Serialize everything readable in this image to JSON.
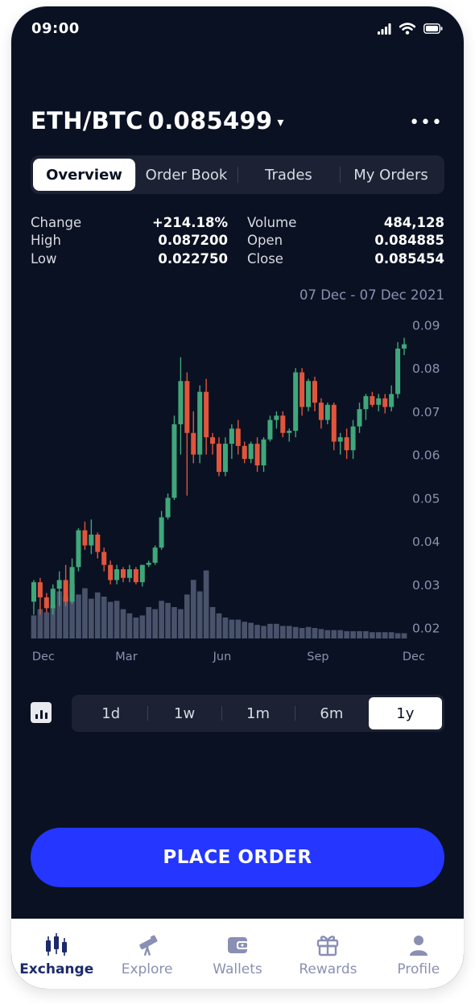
{
  "status": {
    "time": "09:00",
    "icons": [
      "signal-icon",
      "wifi-icon",
      "battery-icon"
    ]
  },
  "header": {
    "pair": "ETH/BTC",
    "price": "0.085499",
    "caret": "▾",
    "more": "•••"
  },
  "tabs": [
    {
      "label": "Overview",
      "active": true
    },
    {
      "label": "Order Book",
      "active": false
    },
    {
      "label": "Trades",
      "active": false
    },
    {
      "label": "My Orders",
      "active": false
    }
  ],
  "stats": {
    "change_label": "Change",
    "change_value": "+214.18%",
    "high_label": "High",
    "high_value": "0.087200",
    "low_label": "Low",
    "low_value": "0.022750",
    "volume_label": "Volume",
    "volume_value": "484,128",
    "open_label": "Open",
    "open_value": "0.084885",
    "close_label": "Close",
    "close_value": "0.085454"
  },
  "date_range": "07 Dec - 07 Dec 2021",
  "timeframes": [
    {
      "label": "1d",
      "active": false
    },
    {
      "label": "1w",
      "active": false
    },
    {
      "label": "1m",
      "active": false
    },
    {
      "label": "6m",
      "active": false
    },
    {
      "label": "1y",
      "active": true
    }
  ],
  "place_order_label": "PLACE ORDER",
  "tabbar": [
    {
      "label": "Exchange",
      "icon": "exchange-icon",
      "active": true
    },
    {
      "label": "Explore",
      "icon": "telescope-icon",
      "active": false
    },
    {
      "label": "Wallets",
      "icon": "wallet-icon",
      "active": false
    },
    {
      "label": "Rewards",
      "icon": "gift-icon",
      "active": false
    },
    {
      "label": "Profile",
      "icon": "profile-icon",
      "active": false
    }
  ],
  "colors": {
    "background": "#0a1122",
    "up": "#3fa77a",
    "down": "#e1553c",
    "volume": "#49526b",
    "accent": "#2436ff"
  },
  "chart_data": {
    "type": "candlestick",
    "title": "",
    "ylim": [
      0.0175,
      0.091
    ],
    "y_ticks": [
      "0.09",
      "0.08",
      "0.07",
      "0.06",
      "0.05",
      "0.04",
      "0.03",
      "0.02"
    ],
    "y_tick_values": [
      0.09,
      0.08,
      0.07,
      0.06,
      0.05,
      0.04,
      0.03,
      0.02
    ],
    "x_labels": [
      "Dec",
      "Mar",
      "Jun",
      "Sep",
      "Dec"
    ],
    "x_label_index": [
      1.5,
      14.5,
      29.5,
      44.5,
      59.5
    ],
    "volume_max": 1,
    "candles": [
      {
        "o": 0.026,
        "h": 0.031,
        "l": 0.023,
        "c": 0.0305
      },
      {
        "o": 0.0305,
        "h": 0.0315,
        "l": 0.023,
        "c": 0.027
      },
      {
        "o": 0.027,
        "h": 0.028,
        "l": 0.0235,
        "c": 0.0245
      },
      {
        "o": 0.0245,
        "h": 0.03,
        "l": 0.023,
        "c": 0.029
      },
      {
        "o": 0.029,
        "h": 0.033,
        "l": 0.025,
        "c": 0.031
      },
      {
        "o": 0.031,
        "h": 0.0345,
        "l": 0.025,
        "c": 0.026
      },
      {
        "o": 0.026,
        "h": 0.036,
        "l": 0.0255,
        "c": 0.034
      },
      {
        "o": 0.034,
        "h": 0.043,
        "l": 0.033,
        "c": 0.0425
      },
      {
        "o": 0.0425,
        "h": 0.0445,
        "l": 0.038,
        "c": 0.039
      },
      {
        "o": 0.039,
        "h": 0.045,
        "l": 0.037,
        "c": 0.0415
      },
      {
        "o": 0.0415,
        "h": 0.042,
        "l": 0.036,
        "c": 0.0375
      },
      {
        "o": 0.0375,
        "h": 0.0385,
        "l": 0.033,
        "c": 0.0345
      },
      {
        "o": 0.0345,
        "h": 0.0355,
        "l": 0.03,
        "c": 0.031
      },
      {
        "o": 0.031,
        "h": 0.0345,
        "l": 0.03,
        "c": 0.0335
      },
      {
        "o": 0.0335,
        "h": 0.034,
        "l": 0.0305,
        "c": 0.0315
      },
      {
        "o": 0.0315,
        "h": 0.0345,
        "l": 0.0305,
        "c": 0.0335
      },
      {
        "o": 0.0335,
        "h": 0.034,
        "l": 0.03,
        "c": 0.0305
      },
      {
        "o": 0.0305,
        "h": 0.0345,
        "l": 0.0295,
        "c": 0.0345
      },
      {
        "o": 0.0345,
        "h": 0.0355,
        "l": 0.034,
        "c": 0.035
      },
      {
        "o": 0.035,
        "h": 0.039,
        "l": 0.0345,
        "c": 0.0385
      },
      {
        "o": 0.0385,
        "h": 0.047,
        "l": 0.038,
        "c": 0.0455
      },
      {
        "o": 0.0455,
        "h": 0.051,
        "l": 0.045,
        "c": 0.05
      },
      {
        "o": 0.05,
        "h": 0.069,
        "l": 0.0495,
        "c": 0.067
      },
      {
        "o": 0.067,
        "h": 0.0825,
        "l": 0.06,
        "c": 0.077
      },
      {
        "o": 0.077,
        "h": 0.079,
        "l": 0.0505,
        "c": 0.065
      },
      {
        "o": 0.065,
        "h": 0.07,
        "l": 0.058,
        "c": 0.06
      },
      {
        "o": 0.06,
        "h": 0.076,
        "l": 0.058,
        "c": 0.0745
      },
      {
        "o": 0.0745,
        "h": 0.0775,
        "l": 0.06,
        "c": 0.064
      },
      {
        "o": 0.064,
        "h": 0.065,
        "l": 0.06,
        "c": 0.0625
      },
      {
        "o": 0.0625,
        "h": 0.064,
        "l": 0.055,
        "c": 0.056
      },
      {
        "o": 0.056,
        "h": 0.064,
        "l": 0.055,
        "c": 0.0625
      },
      {
        "o": 0.0625,
        "h": 0.067,
        "l": 0.059,
        "c": 0.066
      },
      {
        "o": 0.066,
        "h": 0.068,
        "l": 0.06,
        "c": 0.062
      },
      {
        "o": 0.062,
        "h": 0.063,
        "l": 0.058,
        "c": 0.059
      },
      {
        "o": 0.059,
        "h": 0.063,
        "l": 0.058,
        "c": 0.0625
      },
      {
        "o": 0.0625,
        "h": 0.064,
        "l": 0.056,
        "c": 0.0575
      },
      {
        "o": 0.0575,
        "h": 0.064,
        "l": 0.056,
        "c": 0.0635
      },
      {
        "o": 0.0635,
        "h": 0.069,
        "l": 0.063,
        "c": 0.068
      },
      {
        "o": 0.068,
        "h": 0.07,
        "l": 0.066,
        "c": 0.069
      },
      {
        "o": 0.069,
        "h": 0.07,
        "l": 0.064,
        "c": 0.065
      },
      {
        "o": 0.065,
        "h": 0.066,
        "l": 0.063,
        "c": 0.0655
      },
      {
        "o": 0.0655,
        "h": 0.08,
        "l": 0.064,
        "c": 0.079
      },
      {
        "o": 0.079,
        "h": 0.08,
        "l": 0.069,
        "c": 0.071
      },
      {
        "o": 0.071,
        "h": 0.0775,
        "l": 0.07,
        "c": 0.077
      },
      {
        "o": 0.077,
        "h": 0.078,
        "l": 0.07,
        "c": 0.072
      },
      {
        "o": 0.072,
        "h": 0.073,
        "l": 0.066,
        "c": 0.068
      },
      {
        "o": 0.068,
        "h": 0.072,
        "l": 0.067,
        "c": 0.0715
      },
      {
        "o": 0.0715,
        "h": 0.072,
        "l": 0.061,
        "c": 0.063
      },
      {
        "o": 0.063,
        "h": 0.065,
        "l": 0.06,
        "c": 0.064
      },
      {
        "o": 0.064,
        "h": 0.066,
        "l": 0.059,
        "c": 0.061
      },
      {
        "o": 0.061,
        "h": 0.068,
        "l": 0.059,
        "c": 0.0665
      },
      {
        "o": 0.0665,
        "h": 0.072,
        "l": 0.065,
        "c": 0.0705
      },
      {
        "o": 0.0705,
        "h": 0.074,
        "l": 0.068,
        "c": 0.0735
      },
      {
        "o": 0.0735,
        "h": 0.0745,
        "l": 0.071,
        "c": 0.0715
      },
      {
        "o": 0.0715,
        "h": 0.074,
        "l": 0.07,
        "c": 0.073
      },
      {
        "o": 0.073,
        "h": 0.074,
        "l": 0.0695,
        "c": 0.071
      },
      {
        "o": 0.071,
        "h": 0.076,
        "l": 0.07,
        "c": 0.074
      },
      {
        "o": 0.074,
        "h": 0.086,
        "l": 0.073,
        "c": 0.0845
      },
      {
        "o": 0.0845,
        "h": 0.087,
        "l": 0.083,
        "c": 0.0855
      }
    ],
    "volumes": [
      0.22,
      0.28,
      0.25,
      0.32,
      0.45,
      0.4,
      0.52,
      0.42,
      0.48,
      0.38,
      0.44,
      0.4,
      0.35,
      0.36,
      0.28,
      0.24,
      0.2,
      0.22,
      0.3,
      0.28,
      0.36,
      0.34,
      0.3,
      0.28,
      0.42,
      0.56,
      0.45,
      0.65,
      0.3,
      0.24,
      0.2,
      0.18,
      0.18,
      0.16,
      0.15,
      0.13,
      0.12,
      0.14,
      0.14,
      0.12,
      0.12,
      0.11,
      0.1,
      0.11,
      0.1,
      0.09,
      0.08,
      0.08,
      0.08,
      0.07,
      0.07,
      0.07,
      0.07,
      0.06,
      0.06,
      0.06,
      0.06,
      0.05,
      0.05
    ]
  }
}
